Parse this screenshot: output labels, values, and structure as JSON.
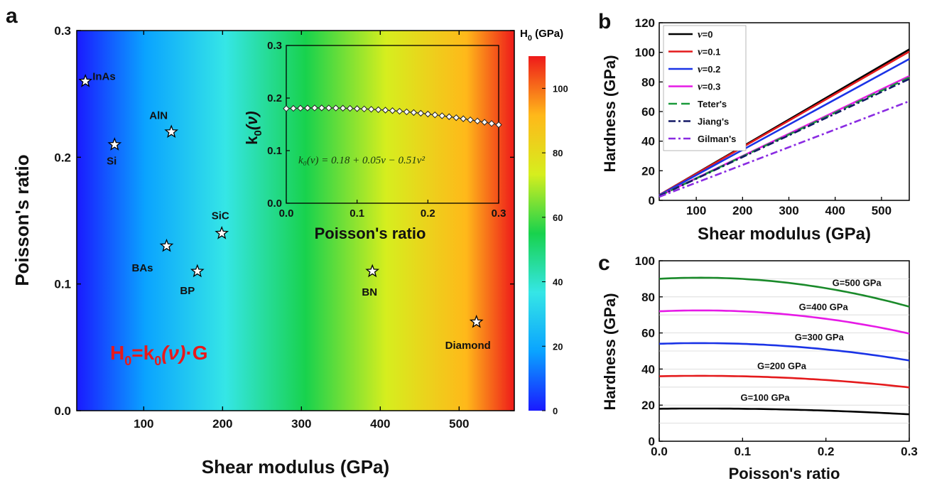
{
  "panels": {
    "a": {
      "letter": "a"
    },
    "b": {
      "letter": "b"
    },
    "c": {
      "letter": "c"
    }
  },
  "chart_data": [
    {
      "id": "a",
      "type": "heatmap",
      "xlabel": "Shear modulus (GPa)",
      "ylabel": "Poisson's ratio",
      "xlim": [
        15,
        570
      ],
      "ylim": [
        0,
        0.3
      ],
      "xticks": [
        100,
        200,
        300,
        400,
        500
      ],
      "yticks": [
        "0.0",
        "0.1",
        "0.2",
        "0.3"
      ],
      "formula": {
        "main": "H",
        "sub1": "0",
        "mid": "=k",
        "sub2": "0",
        "nu": "(ν)",
        "tail": "·G"
      },
      "colorbar": {
        "title": "H",
        "title_sub": "0",
        "title_unit": " (GPa)",
        "range": [
          0,
          110
        ],
        "ticks": [
          "0",
          "20",
          "40",
          "60",
          "80",
          "100"
        ],
        "colors": [
          "#1a1aff",
          "#0aa3ff",
          "#35e6e6",
          "#18d24d",
          "#d6ee1e",
          "#ffb81a",
          "#ee1a1a"
        ]
      },
      "materials": [
        {
          "name": "InAs",
          "G": 26,
          "nu": 0.26
        },
        {
          "name": "Si",
          "G": 63,
          "nu": 0.21
        },
        {
          "name": "AlN",
          "G": 135,
          "nu": 0.22
        },
        {
          "name": "SiC",
          "G": 199,
          "nu": 0.14
        },
        {
          "name": "BAs",
          "G": 129,
          "nu": 0.13
        },
        {
          "name": "BP",
          "G": 168,
          "nu": 0.11
        },
        {
          "name": "BN",
          "G": 390,
          "nu": 0.11
        },
        {
          "name": "Diamond",
          "G": 522,
          "nu": 0.07
        }
      ],
      "inset": {
        "xlabel": "Poisson's ratio",
        "ylabel_main": "k",
        "ylabel_sub": "0",
        "ylabel_nu": "(ν)",
        "xlim": [
          0,
          0.3
        ],
        "ylim": [
          0,
          0.3
        ],
        "xticks": [
          "0.0",
          "0.1",
          "0.2",
          "0.3"
        ],
        "yticks": [
          "0.0",
          "0.1",
          "0.2",
          "0.3"
        ],
        "equation": "k₀(ν) = 0.18 + 0.05ν − 0.51ν²",
        "coefficients": [
          0.18,
          0.05,
          -0.51
        ],
        "points_x": [
          0.0,
          0.01,
          0.02,
          0.03,
          0.04,
          0.05,
          0.06,
          0.07,
          0.08,
          0.09,
          0.1,
          0.11,
          0.12,
          0.13,
          0.14,
          0.15,
          0.16,
          0.17,
          0.18,
          0.19,
          0.2,
          0.21,
          0.22,
          0.23,
          0.24,
          0.25,
          0.26,
          0.27,
          0.28,
          0.29,
          0.3
        ]
      }
    },
    {
      "id": "b",
      "type": "line",
      "xlabel": "Shear modulus (GPa)",
      "ylabel": "Hardness (GPa)",
      "xlim": [
        20,
        560
      ],
      "ylim": [
        0,
        120
      ],
      "xticks": [
        100,
        200,
        300,
        400,
        500
      ],
      "yticks": [
        0,
        20,
        40,
        60,
        80,
        100,
        120
      ],
      "legend_position": "top-left",
      "series": [
        {
          "name": "ν=0",
          "prefix": "ν",
          "suffix": "=0",
          "x": [
            20,
            560
          ],
          "y": [
            3.6,
            102
          ],
          "color": "#000000",
          "dash": ""
        },
        {
          "name": "ν=0.1",
          "prefix": "ν",
          "suffix": "=0.1",
          "x": [
            20,
            560
          ],
          "y": [
            3.6,
            100.5
          ],
          "color": "#e41a1c",
          "dash": ""
        },
        {
          "name": "ν=0.2",
          "prefix": "ν",
          "suffix": "=0.2",
          "x": [
            20,
            560
          ],
          "y": [
            3.4,
            95.5
          ],
          "color": "#1a33e6",
          "dash": ""
        },
        {
          "name": "ν=0.3",
          "prefix": "ν",
          "suffix": "=0.3",
          "x": [
            20,
            560
          ],
          "y": [
            3.0,
            84
          ],
          "color": "#e61ae6",
          "dash": ""
        },
        {
          "name": "Teter's",
          "prefix": "",
          "suffix": "Teter's",
          "x": [
            20,
            560
          ],
          "y": [
            3.0,
            83
          ],
          "color": "#1a9a3a",
          "dash": "12,6"
        },
        {
          "name": "Jiang's",
          "prefix": "",
          "suffix": "Jiang's",
          "x": [
            20,
            560
          ],
          "y": [
            2.9,
            82
          ],
          "color": "#141a66",
          "dash": "10,4,3,4"
        },
        {
          "name": "Gilman's",
          "prefix": "",
          "suffix": "Gilman's",
          "x": [
            20,
            560
          ],
          "y": [
            2.4,
            67
          ],
          "color": "#8a2be2",
          "dash": "10,4,3,4"
        }
      ]
    },
    {
      "id": "c",
      "type": "line",
      "xlabel": "Poisson's ratio",
      "ylabel": "Hardness (GPa)",
      "xlim": [
        0,
        0.3
      ],
      "ylim": [
        0,
        100
      ],
      "xticks": [
        "0.0",
        "0.1",
        "0.2",
        "0.3"
      ],
      "yticks": [
        0,
        20,
        40,
        60,
        80,
        100
      ],
      "grid": true,
      "series": [
        {
          "name": "G=500 GPa",
          "G": 500,
          "color": "#1a8a2a",
          "label_at": [
            0.24,
            0.01
          ]
        },
        {
          "name": "G=400 GPa",
          "G": 400,
          "color": "#e61ae6",
          "label_at": [
            0.2,
            0.035
          ]
        },
        {
          "name": "G=300 GPa",
          "G": 300,
          "color": "#1a33e6",
          "label_at": [
            0.195,
            0.02
          ]
        },
        {
          "name": "G=200 GPa",
          "G": 200,
          "color": "#e41a1c",
          "label_at": [
            0.15,
            0.045
          ]
        },
        {
          "name": "G=100 GPa",
          "G": 100,
          "color": "#000000",
          "label_at": [
            0.13,
            0.035
          ]
        }
      ]
    }
  ]
}
